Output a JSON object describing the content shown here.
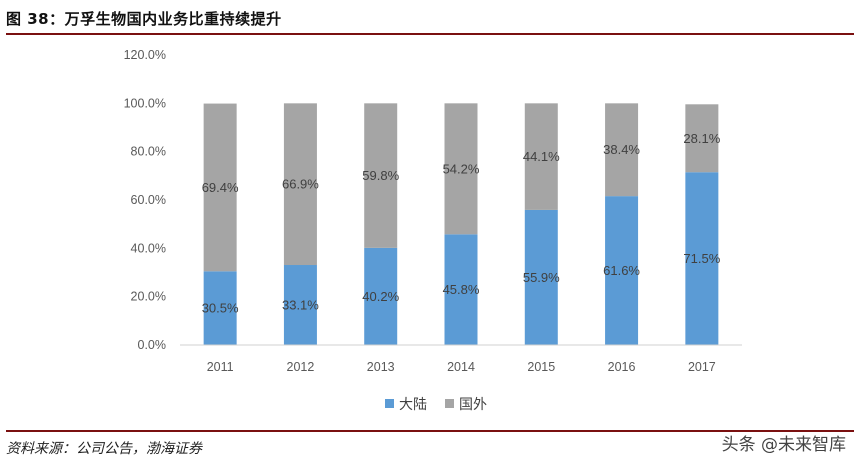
{
  "figure": {
    "title": "图 38：万孚生物国内业务比重持续提升",
    "source": "资料来源：公司公告，渤海证券",
    "watermark": "头条 @未来智库"
  },
  "chart_data": {
    "type": "bar",
    "stacked": true,
    "categories": [
      "2011",
      "2012",
      "2013",
      "2014",
      "2015",
      "2016",
      "2017"
    ],
    "series": [
      {
        "name": "大陆",
        "color": "#5b9bd5",
        "values": [
          30.5,
          33.1,
          40.2,
          45.8,
          55.9,
          61.6,
          71.5
        ],
        "labels": [
          "30.5%",
          "33.1%",
          "40.2%",
          "45.8%",
          "55.9%",
          "61.6%",
          "71.5%"
        ]
      },
      {
        "name": "国外",
        "color": "#a5a5a5",
        "values": [
          69.4,
          66.9,
          59.8,
          54.2,
          44.1,
          38.4,
          28.1
        ],
        "labels": [
          "69.4%",
          "66.9%",
          "59.8%",
          "54.2%",
          "44.1%",
          "38.4%",
          "28.1%"
        ]
      }
    ],
    "yticks": [
      "0.0%",
      "20.0%",
      "40.0%",
      "60.0%",
      "80.0%",
      "100.0%",
      "120.0%"
    ],
    "ylim": [
      0,
      120
    ],
    "grid": false,
    "legend": "bottom",
    "xlabel": "",
    "ylabel": ""
  }
}
